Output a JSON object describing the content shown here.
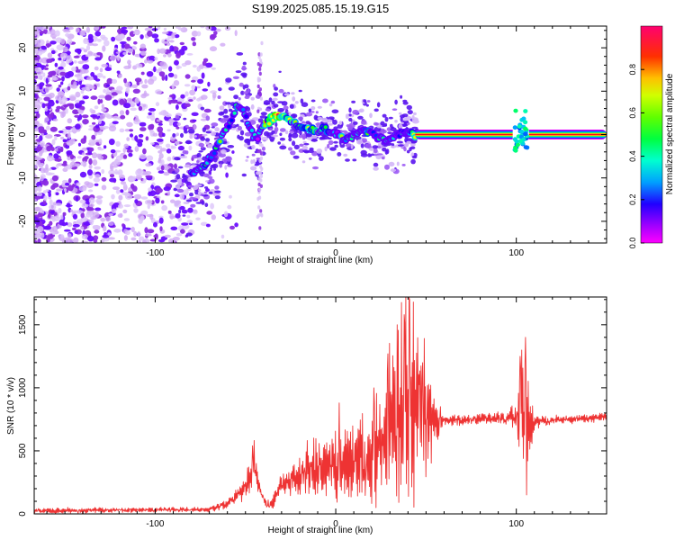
{
  "figure": {
    "title": "S199.2025.085.15.19.G15"
  },
  "chart_data": [
    {
      "type": "heatmap",
      "xlabel": "Height of straight line (km)",
      "ylabel": "Frequency (Hz)",
      "xlim": [
        -167,
        150
      ],
      "ylim": [
        -25,
        25
      ],
      "xticks": [
        -100,
        0,
        100
      ],
      "yticks": [
        -20,
        -10,
        0,
        10,
        20
      ],
      "grid": false,
      "colorbar": {
        "label": "Normalized spectral amplitude",
        "ticks": [
          0.0,
          0.2,
          0.4,
          0.6,
          0.8
        ],
        "range": [
          0,
          1
        ],
        "colors": [
          "#ff00ff",
          "#7f00ff",
          "#0000ff",
          "#00bfff",
          "#00ffaa",
          "#00ff00",
          "#aaff00",
          "#ffff00",
          "#ffaa00",
          "#ff0000",
          "#ff007f"
        ]
      },
      "ridge": {
        "x": [
          -80,
          -72,
          -66,
          -62,
          -58,
          -55,
          -51,
          -47,
          -44,
          -40,
          -35,
          -30,
          -25,
          -20,
          -15,
          -10,
          -5,
          0,
          5,
          10,
          15,
          20,
          25,
          30,
          35,
          38,
          42,
          45,
          60,
          80,
          100,
          104,
          110,
          130,
          150
        ],
        "y": [
          -9,
          -7,
          -3,
          1,
          3,
          7,
          5,
          1,
          -1,
          2,
          4,
          4,
          3,
          2,
          1,
          1,
          1,
          0,
          -1,
          0,
          1,
          0,
          -1,
          -1,
          0,
          1,
          0,
          0,
          0,
          0,
          0,
          0,
          0,
          0,
          0
        ],
        "amplitude": [
          0.35,
          0.35,
          0.3,
          0.3,
          0.3,
          0.35,
          0.3,
          0.25,
          0.25,
          0.55,
          0.8,
          0.75,
          0.6,
          0.55,
          0.5,
          0.55,
          0.45,
          0.3,
          0.35,
          0.3,
          0.3,
          0.25,
          0.3,
          0.3,
          0.25,
          0.3,
          0.35,
          0.95,
          0.95,
          0.95,
          0.9,
          0.9,
          0.95,
          0.95,
          0.95
        ]
      }
    },
    {
      "type": "line",
      "xlabel": "Height of straight line (km)",
      "ylabel": "SNR (10 * v/v)",
      "xlim": [
        -167,
        150
      ],
      "ylim": [
        0,
        1720
      ],
      "xticks": [
        -100,
        0,
        100
      ],
      "yticks": [
        0,
        500,
        1000,
        1500
      ],
      "grid": false,
      "series": [
        {
          "color": "#ee3333",
          "mean": {
            "x": [
              -167,
              -70,
              -60,
              -50,
              -45,
              -42,
              -38,
              -35,
              -30,
              -25,
              -20,
              -10,
              0,
              10,
              20,
              25,
              30,
              35,
              40,
              45,
              50,
              55,
              60,
              80,
              95,
              100,
              103,
              105,
              107,
              110,
              120,
              140,
              150
            ],
            "y": [
              25,
              35,
              80,
              200,
              380,
              180,
              60,
              90,
              230,
              270,
              300,
              360,
              380,
              420,
              470,
              600,
              700,
              800,
              850,
              820,
              780,
              750,
              740,
              750,
              760,
              780,
              800,
              700,
              650,
              730,
              740,
              760,
              770
            ]
          },
          "spread": {
            "x": [
              -167,
              -70,
              -60,
              -50,
              -45,
              -42,
              -38,
              -35,
              -30,
              -25,
              -20,
              -10,
              0,
              10,
              20,
              25,
              30,
              35,
              40,
              45,
              50,
              55,
              60,
              80,
              95,
              100,
              103,
              105,
              107,
              110,
              120,
              140,
              150
            ],
            "y": [
              15,
              15,
              25,
              60,
              150,
              40,
              25,
              40,
              60,
              80,
              150,
              180,
              200,
              250,
              320,
              400,
              500,
              550,
              650,
              500,
              350,
              150,
              30,
              30,
              40,
              100,
              400,
              500,
              300,
              40,
              25,
              25,
              25
            ]
          },
          "peaks": [
            {
              "x": -46,
              "y": 540
            },
            {
              "x": 2,
              "y": 880
            },
            {
              "x": 21,
              "y": 1000
            },
            {
              "x": 29,
              "y": 1270
            },
            {
              "x": 34,
              "y": 1500
            },
            {
              "x": 38,
              "y": 1580
            },
            {
              "x": 41,
              "y": 1700
            },
            {
              "x": 43,
              "y": 1680
            },
            {
              "x": 48,
              "y": 1200
            },
            {
              "x": 105,
              "y": 1400
            },
            {
              "x": 102,
              "y": 1250
            }
          ]
        }
      ]
    }
  ]
}
